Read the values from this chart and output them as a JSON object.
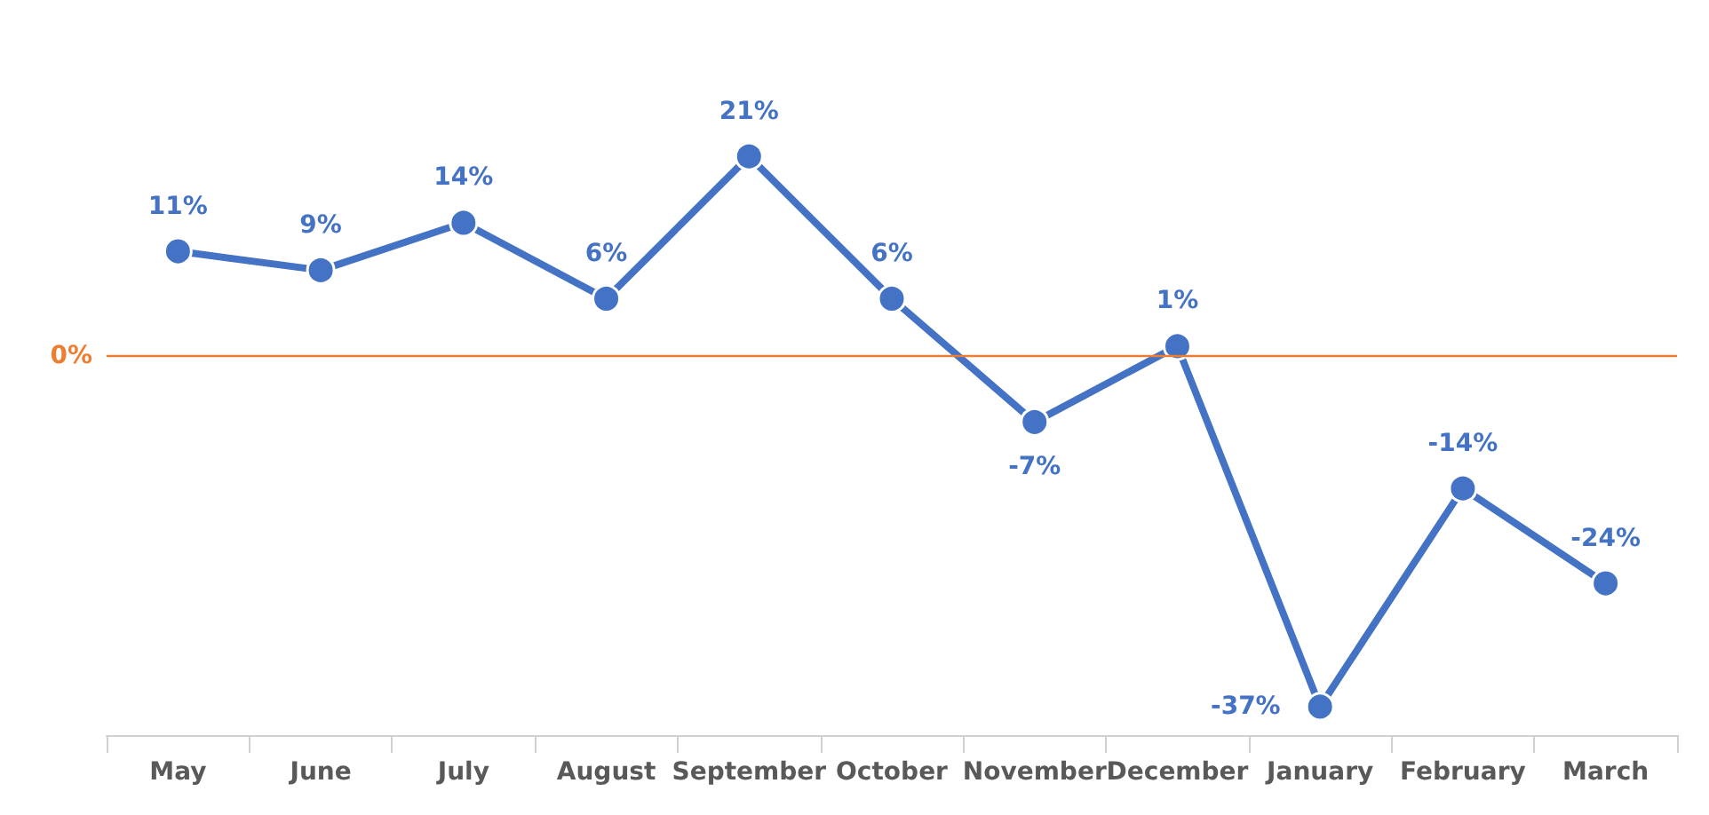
{
  "chart_data": {
    "type": "line",
    "categories": [
      "May",
      "June",
      "July",
      "August",
      "September",
      "October",
      "November",
      "December",
      "January",
      "February",
      "March"
    ],
    "series": [
      {
        "color": "#4472c4",
        "values": [
          11,
          9,
          14,
          6,
          21,
          6,
          -7,
          1,
          -37,
          -14,
          -24
        ],
        "value_labels": [
          "11%",
          "9%",
          "14%",
          "6%",
          "21%",
          "6%",
          "-7%",
          "1%",
          "-37%",
          "-14%",
          "-24%"
        ]
      }
    ],
    "ref_lines": [
      {
        "axis": "y",
        "value": 0,
        "label": "0%",
        "color": "#ed7d31"
      }
    ],
    "marker": "circle",
    "line_style": "solid",
    "grid": false
  }
}
